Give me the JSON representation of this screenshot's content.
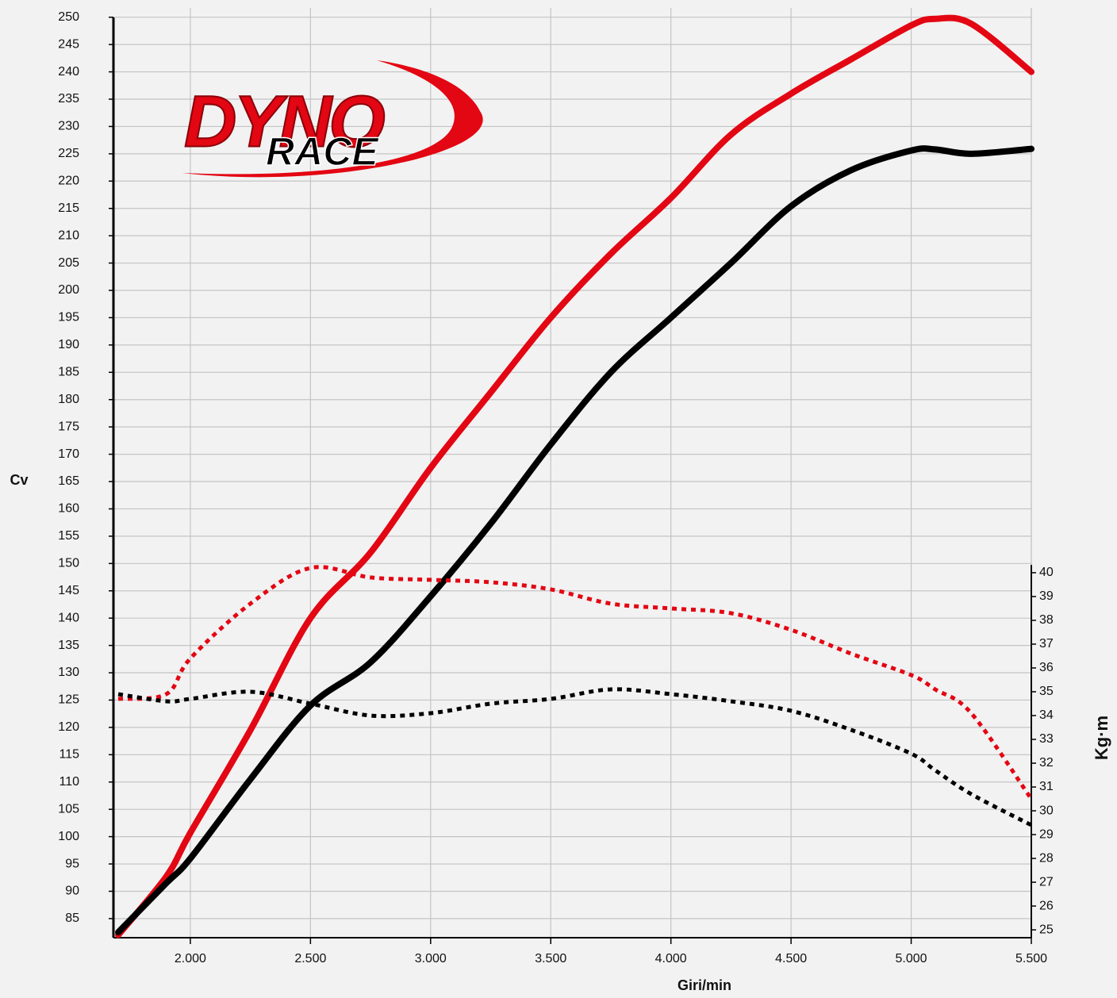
{
  "logo": {
    "line1": "DYNO",
    "line2": "RACE"
  },
  "chart_data": {
    "type": "line",
    "x_label": "Giri/min",
    "y_label": "Cv",
    "y2_label": "Kg·m",
    "x": [
      1700,
      1900,
      2000,
      2250,
      2500,
      2750,
      3000,
      3250,
      3500,
      3750,
      4000,
      4250,
      4500,
      4750,
      5000,
      5100,
      5250,
      5500
    ],
    "xlim": [
      1680,
      5500
    ],
    "xticks": [
      {
        "value": 2000,
        "label": "2.000"
      },
      {
        "value": 2500,
        "label": "2.500"
      },
      {
        "value": 3000,
        "label": "3.000"
      },
      {
        "value": 3500,
        "label": "3.500"
      },
      {
        "value": 4000,
        "label": "4.000"
      },
      {
        "value": 4500,
        "label": "4.500"
      },
      {
        "value": 5000,
        "label": "5.000"
      },
      {
        "value": 5500,
        "label": "5.500"
      }
    ],
    "ylim": [
      81.5,
      251.7
    ],
    "yticks": [
      85,
      90,
      95,
      100,
      105,
      110,
      115,
      120,
      125,
      130,
      135,
      140,
      145,
      150,
      155,
      160,
      165,
      170,
      175,
      180,
      185,
      190,
      195,
      200,
      205,
      210,
      215,
      220,
      225,
      230,
      235,
      240,
      245,
      250
    ],
    "y2lim": [
      24.67,
      40.33
    ],
    "y2ticks": [
      25,
      26,
      27,
      28,
      29,
      30,
      31,
      32,
      33,
      34,
      35,
      36,
      37,
      38,
      39,
      40
    ],
    "grid": true,
    "series": [
      {
        "color": "#e30613",
        "line_style": "solid",
        "values": [
          82,
          92.7,
          100.7,
          119.5,
          140,
          152,
          167.5,
          181.3,
          195,
          206.7,
          216.9,
          228.5,
          236,
          242.3,
          248.5,
          249.7,
          248.8,
          240
        ]
      },
      {
        "color": "#000000",
        "line_style": "solid",
        "values": [
          82.5,
          91.5,
          96,
          110.5,
          124,
          131.9,
          144,
          157.3,
          171.8,
          185,
          195,
          205,
          215.4,
          222,
          225.6,
          225.8,
          225,
          225.9
        ]
      },
      {
        "color": "#e30613",
        "line_style": "dotted",
        "axis": "y2",
        "values": [
          34.7,
          34.9,
          36.4,
          38.7,
          40.2,
          39.8,
          39.7,
          39.6,
          39.3,
          38.7,
          38.5,
          38.3,
          37.6,
          36.6,
          35.7,
          35.1,
          34.1,
          30.5
        ]
      },
      {
        "color": "#000000",
        "line_style": "dotted",
        "axis": "y2",
        "values": [
          34.9,
          34.6,
          34.7,
          35,
          34.5,
          34,
          34.1,
          34.5,
          34.7,
          35.1,
          34.9,
          34.6,
          34.2,
          33.4,
          32.4,
          31.7,
          30.7,
          29.4
        ]
      }
    ]
  }
}
